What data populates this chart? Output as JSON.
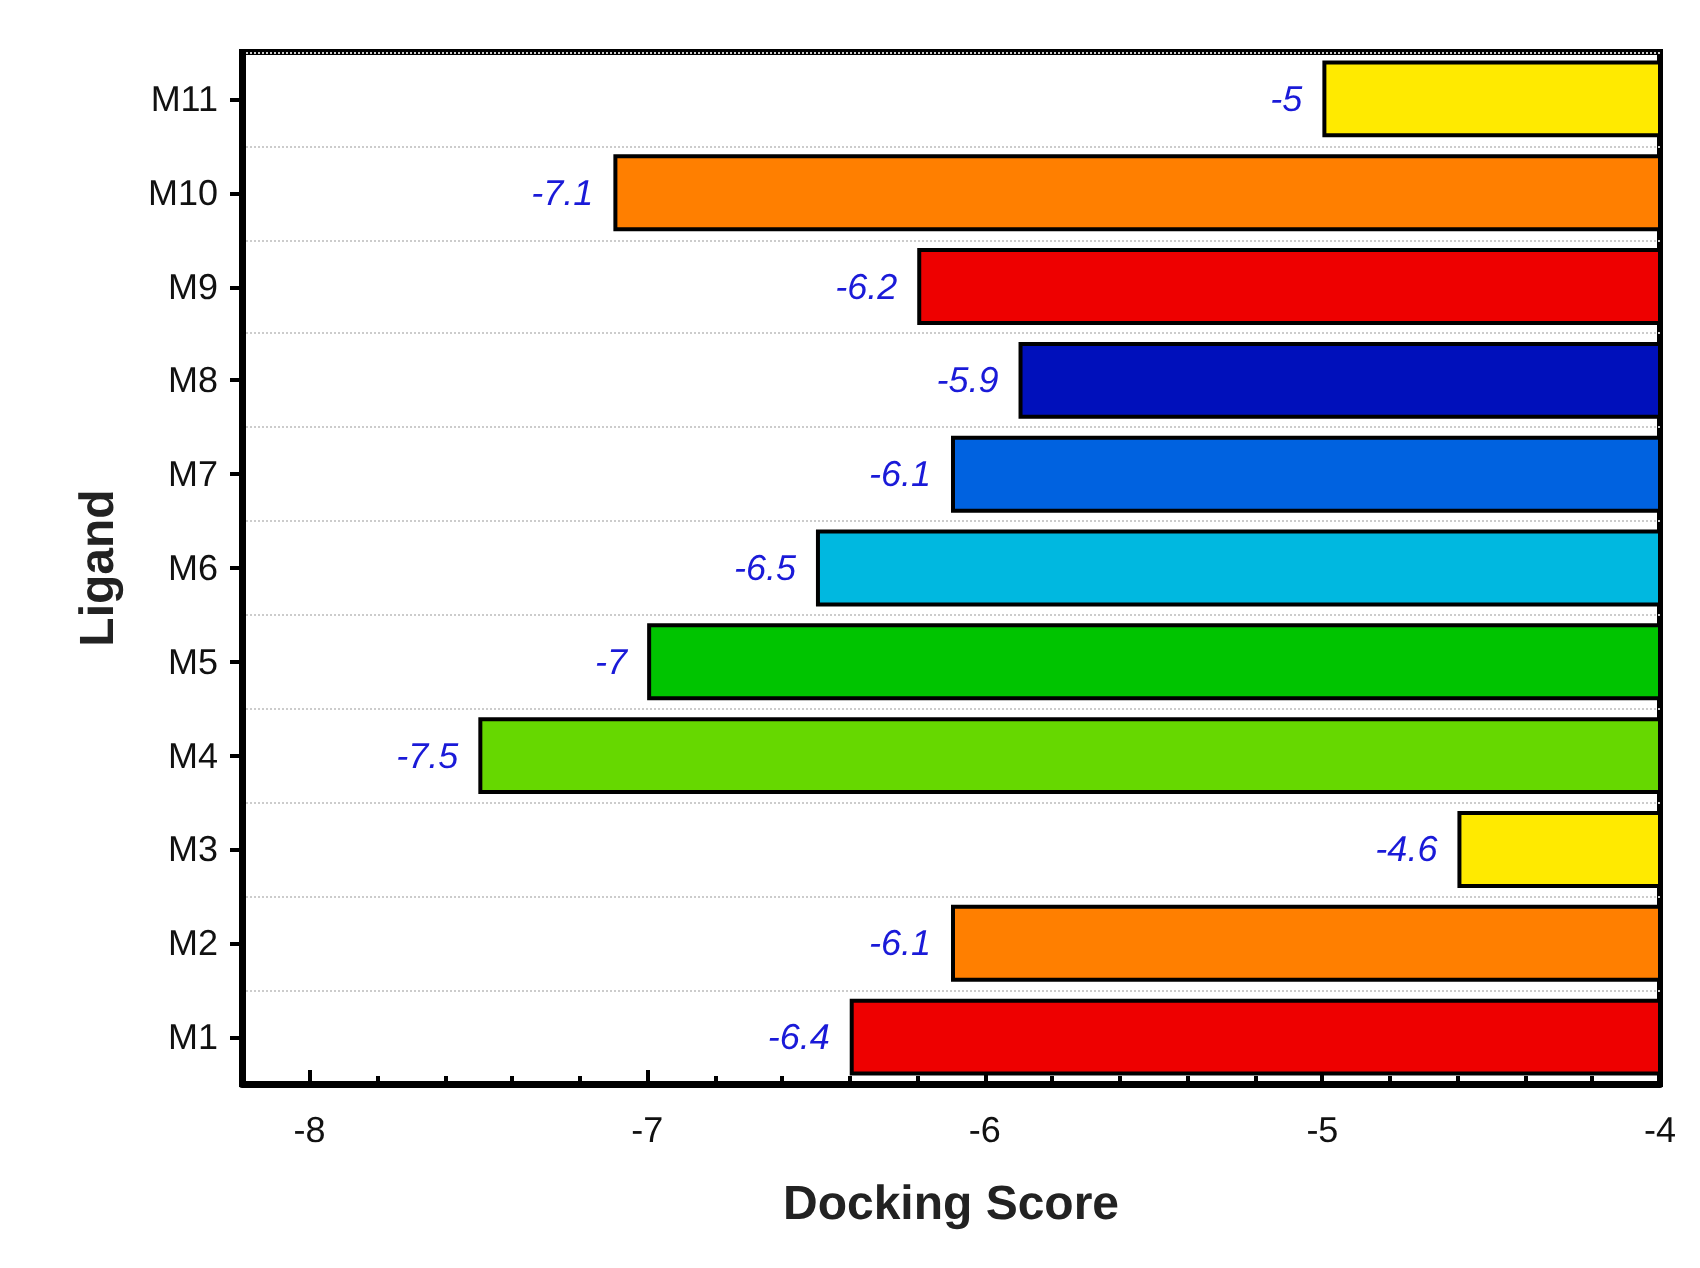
{
  "chart_data": {
    "type": "bar",
    "orientation": "horizontal",
    "xlabel": "Docking Score",
    "ylabel": "Ligand",
    "categories": [
      "M11",
      "M10",
      "M9",
      "M8",
      "M7",
      "M6",
      "M5",
      "M4",
      "M3",
      "M2",
      "M1"
    ],
    "values": [
      -5,
      -7.1,
      -6.2,
      -5.9,
      -6.1,
      -6.5,
      -7,
      -7.5,
      -4.6,
      -6.1,
      -6.4
    ],
    "colors": [
      "#ffea00",
      "#ff7f00",
      "#ee0000",
      "#0010bb",
      "#0062e0",
      "#00b8e0",
      "#00c400",
      "#66d800",
      "#ffea00",
      "#ff7f00",
      "#ee0000"
    ],
    "xlim": [
      -8.2,
      -4
    ],
    "xticks": [
      -8,
      -7,
      -6,
      -5,
      -4
    ],
    "grid": "y",
    "data_labels": true
  }
}
